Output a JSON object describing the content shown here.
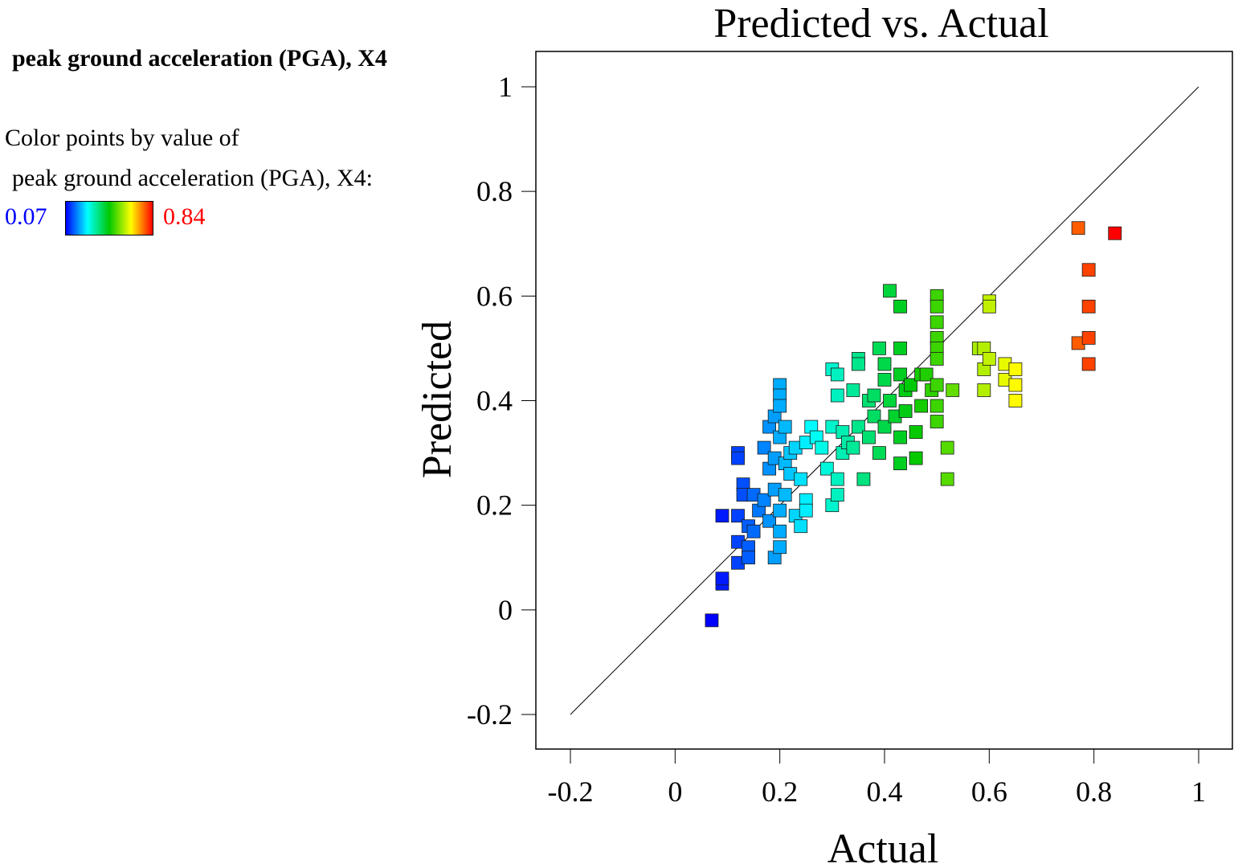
{
  "sidebar": {
    "title": "peak ground acceleration (PGA), X4",
    "legend_line1": "Color points by value of",
    "legend_line2": "peak ground acceleration (PGA), X4:",
    "min_label": "0.07",
    "max_label": "0.84",
    "min_color": "#0000ff",
    "max_color": "#ff0000"
  },
  "chart_data": {
    "type": "scatter",
    "title": "Predicted vs. Actual",
    "xlabel": "Actual",
    "ylabel": "Predicted",
    "xlim": [
      -0.2,
      1.0
    ],
    "ylim": [
      -0.2,
      1.0
    ],
    "xticks": [
      -0.2,
      0,
      0.2,
      0.4,
      0.6,
      0.8,
      1
    ],
    "yticks": [
      -0.2,
      0,
      0.2,
      0.4,
      0.6,
      0.8,
      1
    ],
    "xtick_labels": [
      "-0.2",
      "0",
      "0.2",
      "0.4",
      "0.6",
      "0.8",
      "1"
    ],
    "ytick_labels": [
      "-0.2",
      "0",
      "0.2",
      "0.4",
      "0.6",
      "0.8",
      "1"
    ],
    "reference_line": [
      [
        -0.2,
        -0.2
      ],
      [
        1.0,
        1.0
      ]
    ],
    "color_range": [
      0.07,
      0.84
    ],
    "points": [
      [
        0.07,
        -0.02
      ],
      [
        0.09,
        0.05
      ],
      [
        0.09,
        0.06
      ],
      [
        0.09,
        0.18
      ],
      [
        0.12,
        0.3
      ],
      [
        0.12,
        0.29
      ],
      [
        0.12,
        0.18
      ],
      [
        0.12,
        0.13
      ],
      [
        0.12,
        0.09
      ],
      [
        0.13,
        0.24
      ],
      [
        0.13,
        0.22
      ],
      [
        0.14,
        0.16
      ],
      [
        0.14,
        0.12
      ],
      [
        0.14,
        0.1
      ],
      [
        0.15,
        0.15
      ],
      [
        0.15,
        0.22
      ],
      [
        0.16,
        0.19
      ],
      [
        0.17,
        0.31
      ],
      [
        0.17,
        0.21
      ],
      [
        0.18,
        0.27
      ],
      [
        0.18,
        0.35
      ],
      [
        0.18,
        0.17
      ],
      [
        0.19,
        0.37
      ],
      [
        0.19,
        0.29
      ],
      [
        0.19,
        0.23
      ],
      [
        0.19,
        0.1
      ],
      [
        0.2,
        0.43
      ],
      [
        0.2,
        0.41
      ],
      [
        0.2,
        0.39
      ],
      [
        0.2,
        0.33
      ],
      [
        0.2,
        0.19
      ],
      [
        0.2,
        0.15
      ],
      [
        0.2,
        0.12
      ],
      [
        0.21,
        0.35
      ],
      [
        0.21,
        0.28
      ],
      [
        0.21,
        0.22
      ],
      [
        0.22,
        0.3
      ],
      [
        0.22,
        0.26
      ],
      [
        0.23,
        0.31
      ],
      [
        0.23,
        0.18
      ],
      [
        0.24,
        0.25
      ],
      [
        0.24,
        0.16
      ],
      [
        0.25,
        0.32
      ],
      [
        0.25,
        0.21
      ],
      [
        0.25,
        0.19
      ],
      [
        0.26,
        0.35
      ],
      [
        0.27,
        0.33
      ],
      [
        0.28,
        0.31
      ],
      [
        0.29,
        0.27
      ],
      [
        0.3,
        0.46
      ],
      [
        0.3,
        0.35
      ],
      [
        0.3,
        0.2
      ],
      [
        0.31,
        0.45
      ],
      [
        0.31,
        0.41
      ],
      [
        0.31,
        0.25
      ],
      [
        0.31,
        0.22
      ],
      [
        0.32,
        0.34
      ],
      [
        0.32,
        0.3
      ],
      [
        0.33,
        0.32
      ],
      [
        0.34,
        0.42
      ],
      [
        0.34,
        0.31
      ],
      [
        0.35,
        0.48
      ],
      [
        0.35,
        0.47
      ],
      [
        0.35,
        0.35
      ],
      [
        0.36,
        0.25
      ],
      [
        0.37,
        0.4
      ],
      [
        0.37,
        0.33
      ],
      [
        0.38,
        0.41
      ],
      [
        0.38,
        0.37
      ],
      [
        0.39,
        0.5
      ],
      [
        0.39,
        0.3
      ],
      [
        0.4,
        0.47
      ],
      [
        0.4,
        0.44
      ],
      [
        0.4,
        0.35
      ],
      [
        0.41,
        0.61
      ],
      [
        0.41,
        0.4
      ],
      [
        0.42,
        0.37
      ],
      [
        0.43,
        0.58
      ],
      [
        0.43,
        0.5
      ],
      [
        0.43,
        0.45
      ],
      [
        0.43,
        0.33
      ],
      [
        0.43,
        0.28
      ],
      [
        0.44,
        0.42
      ],
      [
        0.44,
        0.38
      ],
      [
        0.45,
        0.43
      ],
      [
        0.46,
        0.34
      ],
      [
        0.46,
        0.29
      ],
      [
        0.47,
        0.45
      ],
      [
        0.47,
        0.39
      ],
      [
        0.48,
        0.45
      ],
      [
        0.49,
        0.42
      ],
      [
        0.5,
        0.6
      ],
      [
        0.5,
        0.58
      ],
      [
        0.5,
        0.55
      ],
      [
        0.5,
        0.52
      ],
      [
        0.5,
        0.5
      ],
      [
        0.5,
        0.48
      ],
      [
        0.5,
        0.43
      ],
      [
        0.5,
        0.39
      ],
      [
        0.5,
        0.36
      ],
      [
        0.52,
        0.31
      ],
      [
        0.52,
        0.25
      ],
      [
        0.53,
        0.42
      ],
      [
        0.58,
        0.5
      ],
      [
        0.59,
        0.5
      ],
      [
        0.59,
        0.46
      ],
      [
        0.59,
        0.42
      ],
      [
        0.6,
        0.59
      ],
      [
        0.6,
        0.58
      ],
      [
        0.6,
        0.48
      ],
      [
        0.63,
        0.47
      ],
      [
        0.63,
        0.44
      ],
      [
        0.65,
        0.46
      ],
      [
        0.65,
        0.43
      ],
      [
        0.65,
        0.4
      ],
      [
        0.77,
        0.73
      ],
      [
        0.77,
        0.51
      ],
      [
        0.79,
        0.65
      ],
      [
        0.79,
        0.58
      ],
      [
        0.79,
        0.52
      ],
      [
        0.79,
        0.47
      ],
      [
        0.84,
        0.72
      ]
    ]
  }
}
